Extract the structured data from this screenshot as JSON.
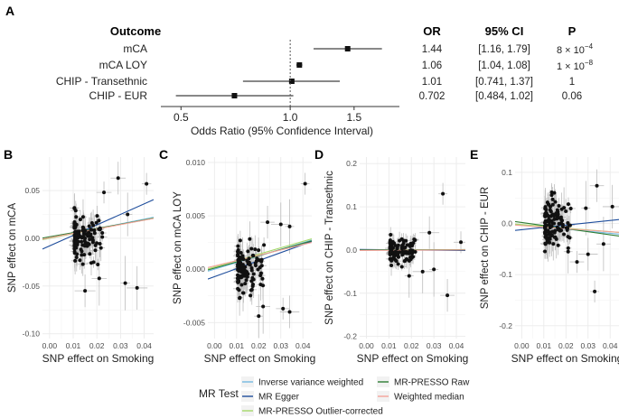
{
  "forest": {
    "panel_label": "A",
    "headers": {
      "outcome": "Outcome",
      "or": "OR",
      "ci": "95% CI",
      "p": "P"
    },
    "rows": [
      {
        "outcome": "mCA",
        "or": "1.44",
        "ci": "[1.16, 1.79]",
        "p_mant": "8",
        "p_exp": "−4",
        "p_text": "",
        "est": 1.44,
        "lo": 1.16,
        "hi": 1.79
      },
      {
        "outcome": "mCA LOY",
        "or": "1.06",
        "ci": "[1.04, 1.08]",
        "p_mant": "1",
        "p_exp": "−8",
        "p_text": "",
        "est": 1.06,
        "lo": 1.04,
        "hi": 1.08
      },
      {
        "outcome": "CHIP - Transethnic",
        "or": "1.01",
        "ci": "[0.741, 1.37]",
        "p_mant": "",
        "p_exp": "",
        "p_text": "1",
        "est": 1.01,
        "lo": 0.741,
        "hi": 1.37
      },
      {
        "outcome": "CHIP - EUR",
        "or": "0.702",
        "ci": "[0.484, 1.02]",
        "p_mant": "",
        "p_exp": "",
        "p_text": "0.06",
        "est": 0.702,
        "lo": 0.484,
        "hi": 1.02
      }
    ],
    "times_sign": "×",
    "base": "10",
    "xlabel": "Odds Ratio (95% Confidence Interval)",
    "xticks": [
      0.5,
      1.0,
      1.5
    ],
    "xtick_labels": [
      "0.5",
      "1.0",
      "1.5"
    ],
    "xlim": [
      0.44,
      2.0
    ],
    "xscale": "log",
    "reference_line": 1.0
  },
  "chart_data": [
    {
      "type": "scatter",
      "panel": "B",
      "ylabel": "SNP effect on mCA",
      "xlabel": "SNP effect on Smoking",
      "xlim": [
        -0.003,
        0.044
      ],
      "ylim": [
        -0.105,
        0.085
      ],
      "xticks": [
        0.0,
        0.01,
        0.02,
        0.03,
        0.04
      ],
      "xtick_labels": [
        "0.00",
        "0.01",
        "0.02",
        "0.03",
        "0.04"
      ],
      "yticks": [
        -0.1,
        -0.05,
        0.0,
        0.05
      ],
      "ytick_labels": [
        "-0.10",
        "-0.05",
        "0.00",
        "0.05"
      ],
      "seed": 11,
      "spread": 0.018,
      "highlights": [
        [
          0.041,
          0.057
        ],
        [
          0.029,
          0.063
        ],
        [
          0.037,
          -0.052
        ],
        [
          0.032,
          -0.047
        ],
        [
          0.023,
          0.048
        ],
        [
          0.015,
          -0.055
        ],
        [
          0.033,
          0.025
        ],
        [
          0.021,
          -0.042
        ]
      ],
      "lines": [
        {
          "name": "Inverse variance weighted",
          "slope": 0.5,
          "intercept": 0.0
        },
        {
          "name": "MR Egger",
          "slope": 1.1,
          "intercept": -0.008
        },
        {
          "name": "MR-PRESSO Outlier-corrected",
          "slope": 0.48,
          "intercept": 0.0
        },
        {
          "name": "MR-PRESSO Raw",
          "slope": 0.44,
          "intercept": 0.0015
        },
        {
          "name": "Weighted median",
          "slope": 0.46,
          "intercept": 0.0005
        }
      ]
    },
    {
      "type": "scatter",
      "panel": "C",
      "ylabel": "SNP effect on mCA LOY",
      "xlabel": "SNP effect on Smoking",
      "xlim": [
        -0.003,
        0.044
      ],
      "ylim": [
        -0.0065,
        0.0105
      ],
      "xticks": [
        0.0,
        0.01,
        0.02,
        0.03,
        0.04
      ],
      "xtick_labels": [
        "0.00",
        "0.01",
        "0.02",
        "0.03",
        "0.04"
      ],
      "yticks": [
        -0.005,
        0.0,
        0.005,
        0.01
      ],
      "ytick_labels": [
        "-0.005",
        "0.000",
        "0.005",
        "0.010"
      ],
      "seed": 23,
      "spread": 0.0016,
      "highlights": [
        [
          0.041,
          0.008
        ],
        [
          0.024,
          0.0044
        ],
        [
          0.03,
          0.0042
        ],
        [
          0.034,
          0.004
        ],
        [
          0.031,
          -0.0037
        ],
        [
          0.034,
          -0.004
        ],
        [
          0.02,
          -0.0044
        ],
        [
          0.022,
          -0.0035
        ]
      ],
      "lines": [
        {
          "name": "Inverse variance weighted",
          "slope": 0.062,
          "intercept": 0.0
        },
        {
          "name": "MR Egger",
          "slope": 0.075,
          "intercept": -0.0007
        },
        {
          "name": "MR-PRESSO Outlier-corrected",
          "slope": 0.06,
          "intercept": 0.0002
        },
        {
          "name": "MR-PRESSO Raw",
          "slope": 0.058,
          "intercept": 0.0001
        },
        {
          "name": "Weighted median",
          "slope": 0.05,
          "intercept": 0.0003
        }
      ]
    },
    {
      "type": "scatter",
      "panel": "D",
      "ylabel": "SNP effect on CHIP - Transethnic",
      "xlabel": "SNP effect on Smoking",
      "xlim": [
        -0.003,
        0.044
      ],
      "ylim": [
        -0.205,
        0.215
      ],
      "xticks": [
        0.0,
        0.01,
        0.02,
        0.03,
        0.04
      ],
      "xtick_labels": [
        "0.00",
        "0.01",
        "0.02",
        "0.03",
        "0.04"
      ],
      "yticks": [
        -0.2,
        -0.1,
        0.0,
        0.1,
        0.2
      ],
      "ytick_labels": [
        "-0.2",
        "-0.1",
        "0.0",
        "0.1",
        "0.2"
      ],
      "seed": 37,
      "spread": 0.022,
      "highlights": [
        [
          0.034,
          0.13
        ],
        [
          0.036,
          -0.105
        ],
        [
          0.025,
          -0.05
        ],
        [
          0.03,
          -0.045
        ],
        [
          0.042,
          0.018
        ],
        [
          0.028,
          0.04
        ],
        [
          0.019,
          -0.06
        ]
      ],
      "lines": [
        {
          "name": "Inverse variance weighted",
          "slope": 0.02,
          "intercept": 0.0
        },
        {
          "name": "MR Egger",
          "slope": -0.05,
          "intercept": 0.001
        },
        {
          "name": "MR-PRESSO Outlier-corrected",
          "slope": 0.02,
          "intercept": 0.0
        },
        {
          "name": "MR-PRESSO Raw",
          "slope": 0.01,
          "intercept": 0.0
        },
        {
          "name": "Weighted median",
          "slope": 0.03,
          "intercept": -0.001
        }
      ]
    },
    {
      "type": "scatter",
      "panel": "E",
      "ylabel": "SNP effect on CHIP - EUR",
      "xlabel": "SNP effect on Smoking",
      "xlim": [
        -0.003,
        0.044
      ],
      "ylim": [
        -0.225,
        0.13
      ],
      "xticks": [
        0.0,
        0.01,
        0.02,
        0.03,
        0.04
      ],
      "xtick_labels": [
        "0.00",
        "0.01",
        "0.02",
        "0.03",
        "0.04"
      ],
      "yticks": [
        -0.2,
        -0.1,
        0.0,
        0.1
      ],
      "ytick_labels": [
        "-0.2",
        "-0.1",
        "0.0",
        "0.1"
      ],
      "seed": 53,
      "spread": 0.035,
      "highlights": [
        [
          0.033,
          -0.133
        ],
        [
          0.034,
          0.074
        ],
        [
          0.041,
          0.033
        ],
        [
          0.029,
          0.03
        ],
        [
          0.025,
          -0.075
        ],
        [
          0.03,
          -0.06
        ],
        [
          0.021,
          -0.055
        ],
        [
          0.037,
          -0.04
        ]
      ],
      "lines": [
        {
          "name": "Inverse variance weighted",
          "slope": -0.4,
          "intercept": -0.003
        },
        {
          "name": "MR Egger",
          "slope": 0.45,
          "intercept": -0.012
        },
        {
          "name": "MR-PRESSO Outlier-corrected",
          "slope": -0.35,
          "intercept": -0.002
        },
        {
          "name": "MR-PRESSO Raw",
          "slope": -0.6,
          "intercept": 0.002
        },
        {
          "name": "Weighted median",
          "slope": -0.3,
          "intercept": -0.004
        }
      ]
    }
  ],
  "legend": {
    "title": "MR Test",
    "items": [
      {
        "name": "Inverse variance weighted",
        "color": "#74b9e0"
      },
      {
        "name": "MR Egger",
        "color": "#1f4e9c"
      },
      {
        "name": "MR-PRESSO Outlier-corrected",
        "color": "#a6d96a"
      },
      {
        "name": "MR-PRESSO Raw",
        "color": "#2e7d32"
      },
      {
        "name": "Weighted median",
        "color": "#f4a39a"
      }
    ]
  },
  "colors": {
    "point": "#111111",
    "errorbar": "#bdbdbd",
    "grid": "#ebebeb",
    "axis_text": "#4d4d4d"
  }
}
